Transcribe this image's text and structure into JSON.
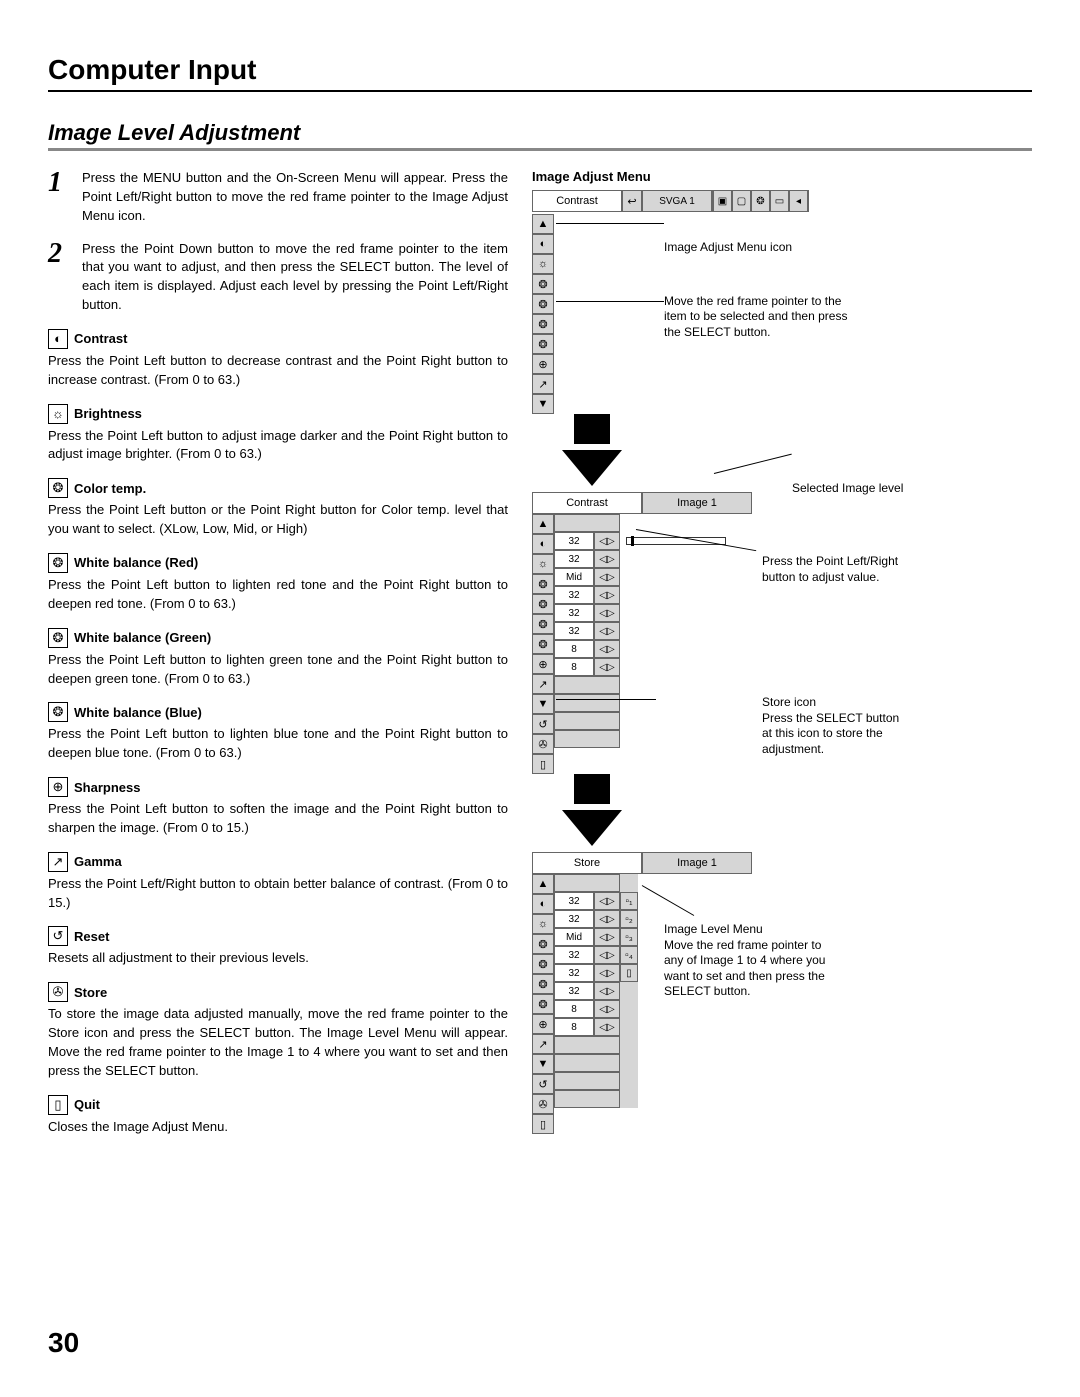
{
  "header": {
    "title": "Computer Input"
  },
  "section": {
    "title": "Image Level Adjustment"
  },
  "steps": [
    {
      "num": "1",
      "text": "Press the MENU button and the On-Screen Menu will appear. Press the Point Left/Right button to move the red frame pointer to the Image Adjust Menu icon."
    },
    {
      "num": "2",
      "text": "Press the Point Down button to move the red frame pointer to the item that you want to adjust, and then press the SELECT button.  The level of each item is displayed.  Adjust each level by pressing the Point Left/Right button."
    }
  ],
  "items": [
    {
      "icon": "◐",
      "title": "Contrast",
      "desc": "Press the Point Left button to decrease contrast and the Point Right button to increase contrast.  (From 0 to 63.)"
    },
    {
      "icon": "☼",
      "title": "Brightness",
      "desc": "Press the Point Left button to adjust image darker and the Point Right button to adjust image brighter.  (From 0 to 63.)"
    },
    {
      "icon": "❂",
      "title": "Color temp.",
      "desc": "Press the Point Left button or the Point Right  button for Color temp. level that you want to select. (XLow, Low, Mid, or High)"
    },
    {
      "icon": "❂",
      "title": "White balance (Red)",
      "desc": "Press the Point Left button to lighten red tone and the Point Right button to deepen red tone.  (From 0 to 63.)"
    },
    {
      "icon": "❂",
      "title": "White balance (Green)",
      "desc": "Press the Point Left button to lighten green tone and the Point Right button to deepen green tone.  (From 0 to 63.)"
    },
    {
      "icon": "❂",
      "title": "White balance (Blue)",
      "desc": "Press the Point Left button to lighten blue tone and the Point Right button to deepen blue tone.  (From 0 to 63.)"
    },
    {
      "icon": "⊕",
      "title": "Sharpness",
      "desc": "Press the Point Left button to soften the image and the Point Right button to sharpen the image.  (From 0 to 15.)"
    },
    {
      "icon": "↗",
      "title": "Gamma",
      "desc": "Press the Point Left/Right  button to obtain better balance of contrast.  (From 0 to 15.)"
    },
    {
      "icon": "↺",
      "title": "Reset",
      "desc": "Resets all adjustment to their previous levels."
    },
    {
      "icon": "✇",
      "title": "Store",
      "desc": "To store the image data adjusted manually, move the red frame pointer to the Store icon and press the SELECT button.  The Image Level Menu will appear.  Move the red frame pointer to the Image 1 to 4 where you want to set and then press the SELECT button."
    },
    {
      "icon": "▯",
      "title": "Quit",
      "desc": "Closes the Image Adjust Menu."
    }
  ],
  "osd": {
    "menu_title": "Image Adjust Menu",
    "bar_label": "Contrast",
    "bar_mode": "SVGA 1",
    "stack1": [
      "▲",
      "◐",
      "☼",
      "❂",
      "❂",
      "❂",
      "❂",
      "⊕",
      "↗",
      "▼"
    ],
    "callout1": "Image Adjust Menu icon",
    "callout2": "Move the red frame pointer to the item to be selected and then press the SELECT button.",
    "pane2_left": "Contrast",
    "pane2_right": "Image 1",
    "callout3": "Selected Image level",
    "stack2": [
      "▲",
      "◐",
      "☼",
      "❂",
      "❂",
      "❂",
      "❂",
      "⊕",
      "↗",
      "▼",
      "↺",
      "✇",
      "▯"
    ],
    "vals2": [
      "",
      "32",
      "32",
      "Mid",
      "32",
      "32",
      "32",
      "8",
      "8",
      "",
      "",
      "",
      ""
    ],
    "callout4": "Press the Point Left/Right button to adjust value.",
    "callout5a": "Store icon",
    "callout5b": "Press the SELECT button at this icon to store the adjustment.",
    "pane3_left": "Store",
    "pane3_right": "Image 1",
    "stack3": [
      "▲",
      "◐",
      "☼",
      "❂",
      "❂",
      "❂",
      "❂",
      "⊕",
      "↗",
      "▼",
      "↺",
      "✇",
      "▯"
    ],
    "vals3": [
      "",
      "32",
      "32",
      "Mid",
      "32",
      "32",
      "32",
      "8",
      "8",
      "",
      "",
      "",
      ""
    ],
    "boxes3": [
      "",
      "▫₁",
      "▫₂",
      "▫₃",
      "▫₄",
      "▯",
      "",
      "",
      "",
      "",
      "",
      "",
      ""
    ],
    "callout6a": "Image Level Menu",
    "callout6b": "Move the red frame pointer to any of Image 1 to 4 where you want to set  and then press the SELECT button."
  },
  "page_number": "30"
}
